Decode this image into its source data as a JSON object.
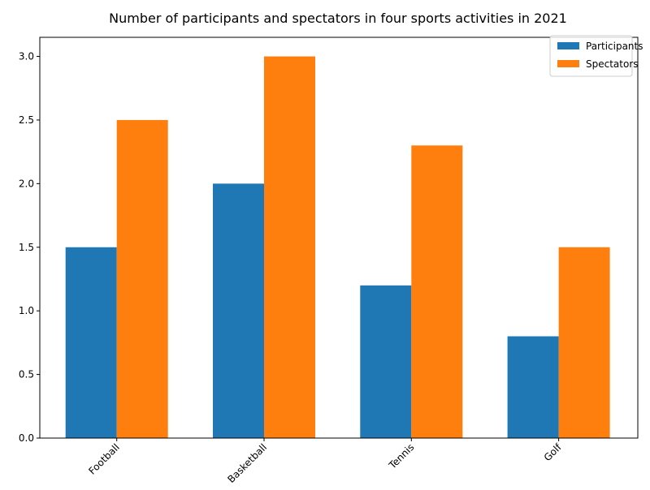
{
  "chart_data": {
    "type": "bar",
    "title": "Number of participants and spectators in four sports activities in 2021",
    "xlabel": "",
    "ylabel": "",
    "categories": [
      "Football",
      "Basketball",
      "Tennis",
      "Golf"
    ],
    "series": [
      {
        "name": "Participants",
        "values": [
          1.5,
          2.0,
          1.2,
          0.8
        ],
        "color": "#1f77b4"
      },
      {
        "name": "Spectators",
        "values": [
          2.5,
          3.0,
          2.3,
          1.5
        ],
        "color": "#ff7f0e"
      }
    ],
    "ylim": [
      0,
      3.15
    ],
    "yticks": [
      0.0,
      0.5,
      1.0,
      1.5,
      2.0,
      2.5,
      3.0
    ],
    "ytick_labels": [
      "0.0",
      "0.5",
      "1.0",
      "1.5",
      "2.0",
      "2.5",
      "3.0"
    ],
    "grid": false,
    "legend_position": "top-right",
    "xtick_rotation": "45 degrees"
  }
}
